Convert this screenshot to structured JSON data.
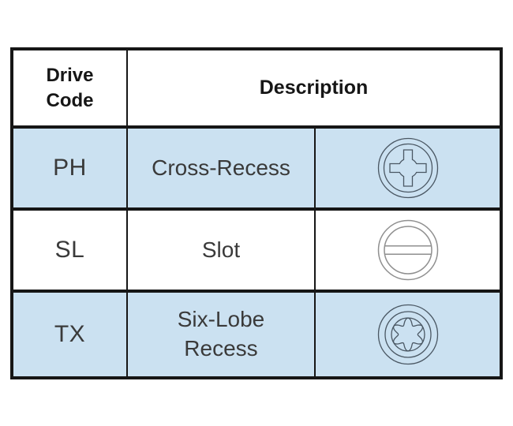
{
  "colors": {
    "row_highlight": "#cbe1f1",
    "table_border": "#161616",
    "header_text": "#161616",
    "body_text": "#3a3a3a",
    "icon_stroke_highlight": "#4a5763",
    "icon_stroke_plain": "#8f8f8f"
  },
  "table": {
    "headers": {
      "drive_code": "Drive\nCode",
      "description": "Description"
    },
    "rows": [
      {
        "code": "PH",
        "description": "Cross-Recess",
        "icon": "phillips-cross-recess-icon",
        "highlighted": true
      },
      {
        "code": "SL",
        "description": "Slot",
        "icon": "slot-icon",
        "highlighted": false
      },
      {
        "code": "TX",
        "description": "Six-Lobe\nRecess",
        "icon": "six-lobe-recess-icon",
        "highlighted": true
      }
    ]
  }
}
